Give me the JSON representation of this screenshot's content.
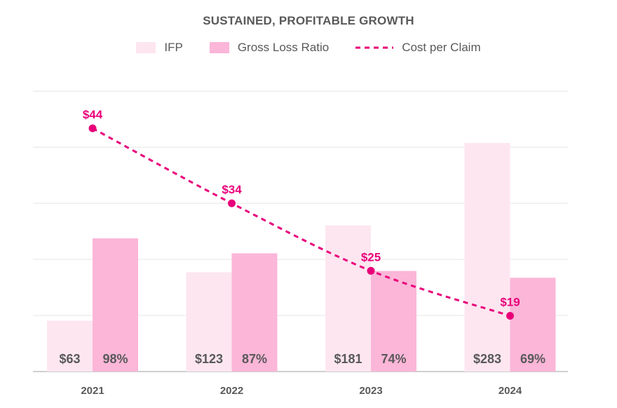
{
  "chart_data": {
    "type": "bar",
    "title": "SUSTAINED, PROFITABLE GROWTH",
    "categories": [
      "2021",
      "2022",
      "2023",
      "2024"
    ],
    "series": [
      {
        "name": "IFP",
        "kind": "bar",
        "values": [
          63,
          123,
          181,
          283
        ],
        "labels": [
          "$63",
          "$123",
          "$181",
          "$283"
        ],
        "color": "#fde6f0"
      },
      {
        "name": "Gross Loss Ratio",
        "kind": "bar",
        "values": [
          98,
          87,
          74,
          69
        ],
        "labels": [
          "98%",
          "87%",
          "74%",
          "69%"
        ],
        "color": "#fbb6d8"
      },
      {
        "name": "Cost per Claim",
        "kind": "line",
        "style": "dashed",
        "values": [
          44,
          34,
          25,
          19
        ],
        "labels": [
          "$44",
          "$34",
          "$25",
          "$19"
        ],
        "color": "#e8007a"
      }
    ],
    "xlabel": "",
    "ylabel": "",
    "grid": true,
    "legend_position": "top"
  },
  "colors": {
    "text": "#595959",
    "grid": "#e6e6e6",
    "axis": "#bfbfbf"
  }
}
